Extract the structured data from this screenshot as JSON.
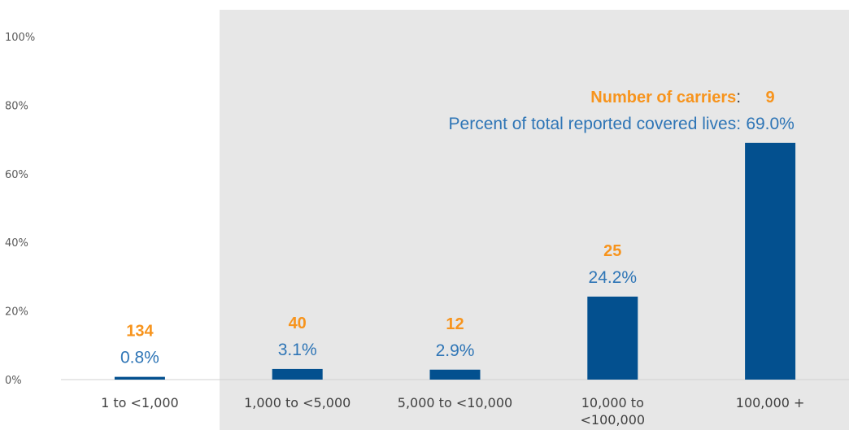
{
  "chart_data": {
    "type": "bar",
    "categories": [
      "1 to <1,000",
      "1,000 to <5,000",
      "5,000 to <10,000",
      "10,000 to <100,000",
      "100,000 +"
    ],
    "category_lines": [
      [
        "1 to <1,000"
      ],
      [
        "1,000 to <5,000"
      ],
      [
        "5,000 to <10,000"
      ],
      [
        "10,000 to",
        "<100,000"
      ],
      [
        "100,000 +"
      ]
    ],
    "values": [
      0.8,
      3.1,
      2.9,
      24.2,
      69.0
    ],
    "value_labels": [
      "0.8%",
      "3.1%",
      "2.9%",
      "24.2%",
      "69.0%"
    ],
    "carrier_counts": [
      134,
      40,
      12,
      25,
      9
    ],
    "carrier_labels": [
      "134",
      "40",
      "12",
      "25",
      "9"
    ],
    "yticks": [
      "0%",
      "20%",
      "40%",
      "60%",
      "80%",
      "100%"
    ],
    "ylim": [
      0,
      100
    ],
    "legend_count_label": "Number of carriers",
    "legend_pct_label": "Percent of total reported covered lives",
    "grid": false,
    "colors": {
      "bar": "#03508f",
      "count_text": "#f7941d",
      "percent_text": "#2e75b6",
      "shaded_region": "#e7e7e7",
      "colon": "#404040"
    }
  }
}
